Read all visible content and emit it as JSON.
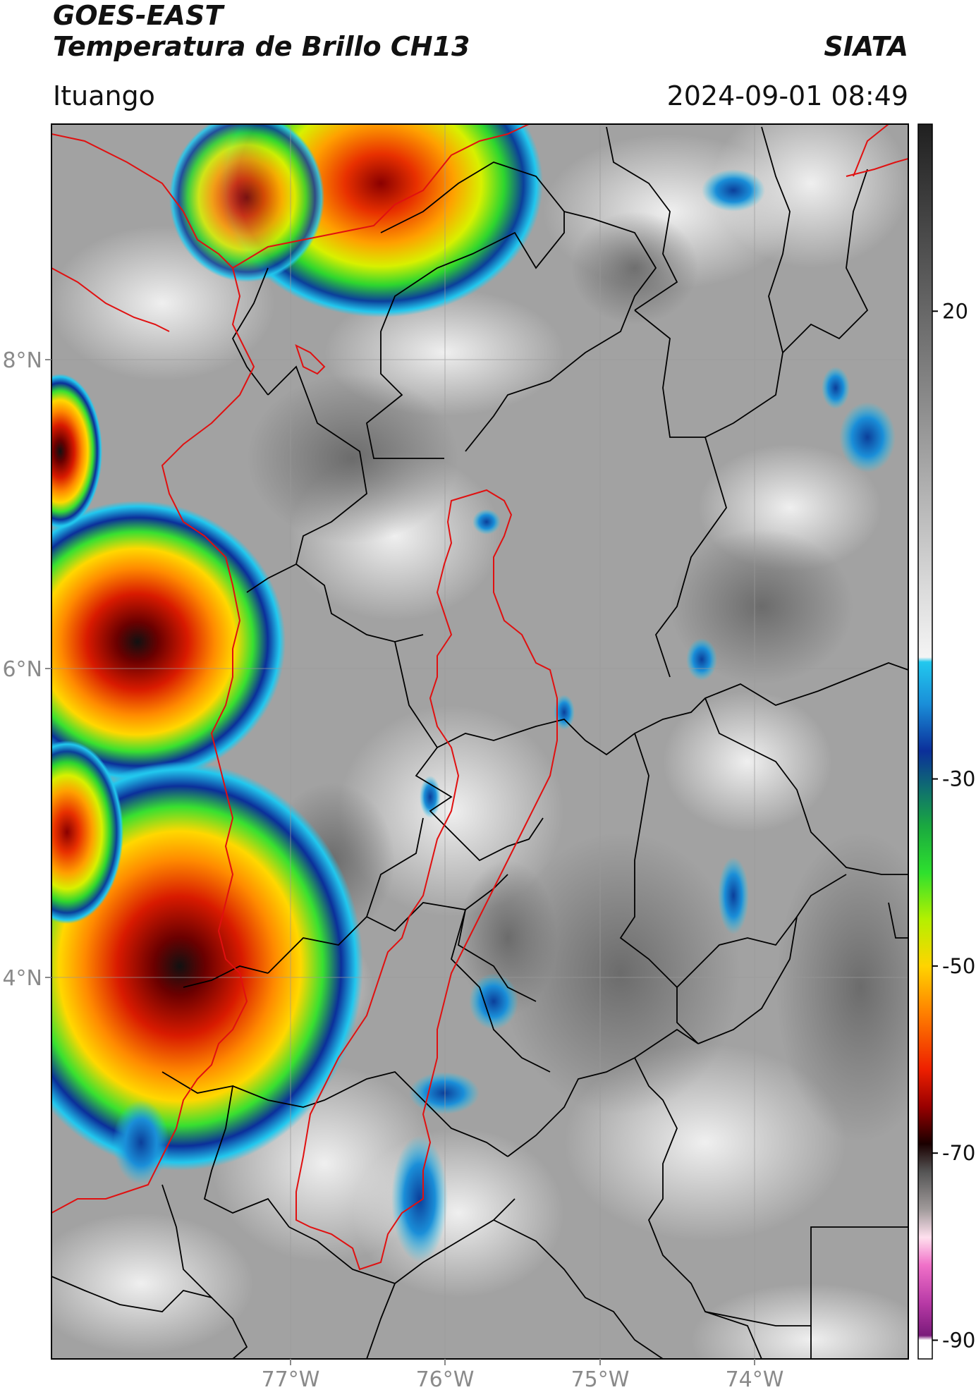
{
  "header": {
    "satellite": "GOES-EAST",
    "product": "Temperatura de Brillo CH13",
    "brand": "SIATA",
    "location": "Ituango",
    "datetime": "2024-09-01 08:49"
  },
  "map": {
    "lat_range": [
      2.2,
      9.55
    ],
    "lon_range": [
      -78.55,
      -73.0
    ],
    "lat_ticks": [
      "8°N",
      "6°N",
      "4°N"
    ],
    "lon_ticks": [
      "77°W",
      "76°W",
      "75°W",
      "74°W"
    ],
    "grid": true
  },
  "colorbar": {
    "tick_labels": [
      "20",
      "-30",
      "-50",
      "-70",
      "-90"
    ],
    "tick_values": [
      20,
      -30,
      -50,
      -70,
      -90
    ],
    "range": [
      40,
      -92
    ],
    "stops": [
      {
        "v": 40,
        "c": "#202020"
      },
      {
        "v": 25,
        "c": "#555555"
      },
      {
        "v": 10,
        "c": "#8c8c8c"
      },
      {
        "v": 0,
        "c": "#b4b4b4"
      },
      {
        "v": -10,
        "c": "#dcdcdc"
      },
      {
        "v": -17,
        "c": "#f4f4f4"
      },
      {
        "v": -17.5,
        "c": "#22c8ee"
      },
      {
        "v": -22,
        "c": "#1a8ed8"
      },
      {
        "v": -27,
        "c": "#0b2f9a"
      },
      {
        "v": -31,
        "c": "#0f6e70"
      },
      {
        "v": -35,
        "c": "#1aa840"
      },
      {
        "v": -40,
        "c": "#2ee02e"
      },
      {
        "v": -45,
        "c": "#b4f000"
      },
      {
        "v": -50,
        "c": "#ffd400"
      },
      {
        "v": -55,
        "c": "#ff8000"
      },
      {
        "v": -61,
        "c": "#ee2000"
      },
      {
        "v": -65,
        "c": "#9a0000"
      },
      {
        "v": -69,
        "c": "#1a0000"
      },
      {
        "v": -72,
        "c": "#555555"
      },
      {
        "v": -76,
        "c": "#a09a9a"
      },
      {
        "v": -79,
        "c": "#ffe0ee"
      },
      {
        "v": -82,
        "c": "#f070c8"
      },
      {
        "v": -86,
        "c": "#b83aa6"
      },
      {
        "v": -89.5,
        "c": "#7a1a7a"
      },
      {
        "v": -90,
        "c": "#ffffff"
      },
      {
        "v": -92,
        "c": "#ffffff"
      }
    ]
  },
  "colors": {
    "frame": "#000000",
    "grid": "#9a9a9a",
    "department_border": "#e01010",
    "municipal_border": "#000000"
  }
}
